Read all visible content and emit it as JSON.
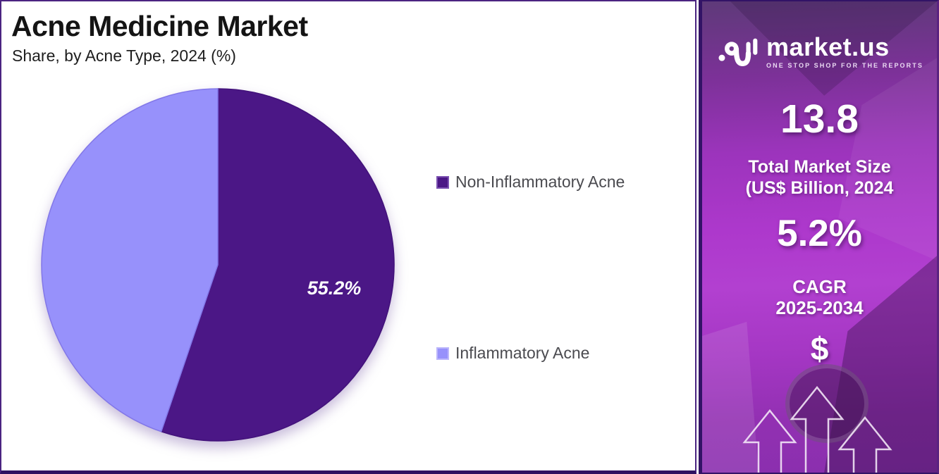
{
  "header": {
    "title": "Acne Medicine Market",
    "subtitle": "Share, by Acne Type, 2024 (%)"
  },
  "chart_data": {
    "type": "pie",
    "title": "Acne Medicine Market Share, by Acne Type, 2024 (%)",
    "unit": "%",
    "year": "2024",
    "start_angle_deg": 0,
    "direction": "clockwise",
    "legend_position": "right",
    "data_label_color": "#ffffff",
    "slices": [
      {
        "label": "Non-Inflammatory Acne",
        "value": 55.2,
        "data_label": "55.2%",
        "color": "#4b1786",
        "stroke": "#42127a",
        "swatch_border": "#7c52b2"
      },
      {
        "label": "Inflammatory Acne",
        "value": 44.8,
        "data_label": "",
        "color": "#9791fb",
        "stroke": "#8277e8",
        "swatch_border": "#bcb6fb"
      }
    ]
  },
  "sidebar": {
    "brand": {
      "name": "market.us",
      "tagline": "ONE STOP SHOP FOR THE REPORTS"
    },
    "stats": [
      {
        "value": "13.8",
        "label_line1": "Total Market Size",
        "label_line2": "(US$ Billion, 2024"
      },
      {
        "value": "5.2%",
        "label_line1": "CAGR",
        "label_line2": "2025-2034"
      }
    ],
    "dollar_symbol": "$"
  },
  "colors": {
    "panel_border": "#4b2481",
    "panel_border_bottom": "#2e1060",
    "sidebar_magenta": "#a935c9",
    "sidebar_dark_border": "#321366",
    "legend_text": "#4b4b50",
    "title_text": "#141414"
  }
}
